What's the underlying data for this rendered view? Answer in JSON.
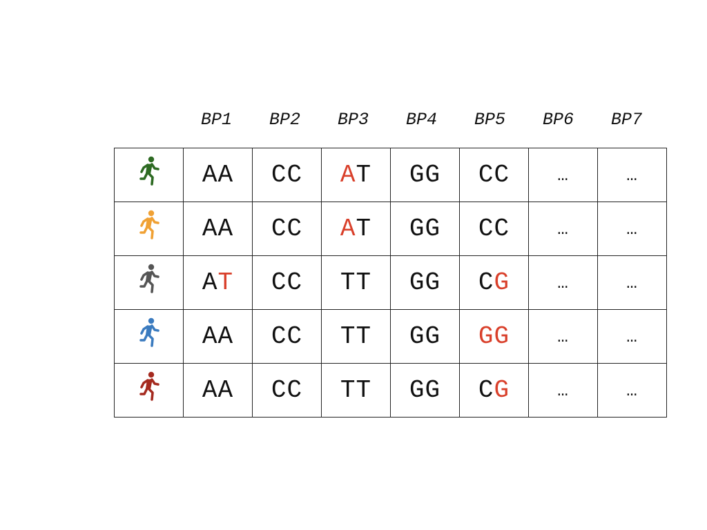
{
  "headers": [
    "BP1",
    "BP2",
    "BP3",
    "BP4",
    "BP5",
    "BP6",
    "BP7"
  ],
  "highlight_color": "#d9402b",
  "text_color": "#111111",
  "rows": [
    {
      "icon": "runner-icon",
      "color": "#2d6a22",
      "cells": [
        [
          {
            "t": "AA",
            "hl": false
          }
        ],
        [
          {
            "t": "CC",
            "hl": false
          }
        ],
        [
          {
            "t": "A",
            "hl": true
          },
          {
            "t": "T",
            "hl": false
          }
        ],
        [
          {
            "t": "GG",
            "hl": false
          }
        ],
        [
          {
            "t": "CC",
            "hl": false
          }
        ],
        [
          {
            "t": "…",
            "hl": false
          }
        ],
        [
          {
            "t": "…",
            "hl": false
          }
        ]
      ]
    },
    {
      "icon": "runner-icon",
      "color": "#f0a134",
      "cells": [
        [
          {
            "t": "AA",
            "hl": false
          }
        ],
        [
          {
            "t": "CC",
            "hl": false
          }
        ],
        [
          {
            "t": "A",
            "hl": true
          },
          {
            "t": "T",
            "hl": false
          }
        ],
        [
          {
            "t": "GG",
            "hl": false
          }
        ],
        [
          {
            "t": "CC",
            "hl": false
          }
        ],
        [
          {
            "t": "…",
            "hl": false
          }
        ],
        [
          {
            "t": "…",
            "hl": false
          }
        ]
      ]
    },
    {
      "icon": "runner-icon",
      "color": "#555555",
      "cells": [
        [
          {
            "t": "A",
            "hl": false
          },
          {
            "t": "T",
            "hl": true
          }
        ],
        [
          {
            "t": "CC",
            "hl": false
          }
        ],
        [
          {
            "t": "TT",
            "hl": false
          }
        ],
        [
          {
            "t": "GG",
            "hl": false
          }
        ],
        [
          {
            "t": "C",
            "hl": false
          },
          {
            "t": "G",
            "hl": true
          }
        ],
        [
          {
            "t": "…",
            "hl": false
          }
        ],
        [
          {
            "t": "…",
            "hl": false
          }
        ]
      ]
    },
    {
      "icon": "runner-icon",
      "color": "#3b7bbf",
      "cells": [
        [
          {
            "t": "AA",
            "hl": false
          }
        ],
        [
          {
            "t": "CC",
            "hl": false
          }
        ],
        [
          {
            "t": "TT",
            "hl": false
          }
        ],
        [
          {
            "t": "GG",
            "hl": false
          }
        ],
        [
          {
            "t": "GG",
            "hl": true
          }
        ],
        [
          {
            "t": "…",
            "hl": false
          }
        ],
        [
          {
            "t": "…",
            "hl": false
          }
        ]
      ]
    },
    {
      "icon": "runner-icon",
      "color": "#a52a1f",
      "cells": [
        [
          {
            "t": "AA",
            "hl": false
          }
        ],
        [
          {
            "t": "CC",
            "hl": false
          }
        ],
        [
          {
            "t": "TT",
            "hl": false
          }
        ],
        [
          {
            "t": "GG",
            "hl": false
          }
        ],
        [
          {
            "t": "C",
            "hl": false
          },
          {
            "t": "G",
            "hl": true
          }
        ],
        [
          {
            "t": "…",
            "hl": false
          }
        ],
        [
          {
            "t": "…",
            "hl": false
          }
        ]
      ]
    }
  ]
}
